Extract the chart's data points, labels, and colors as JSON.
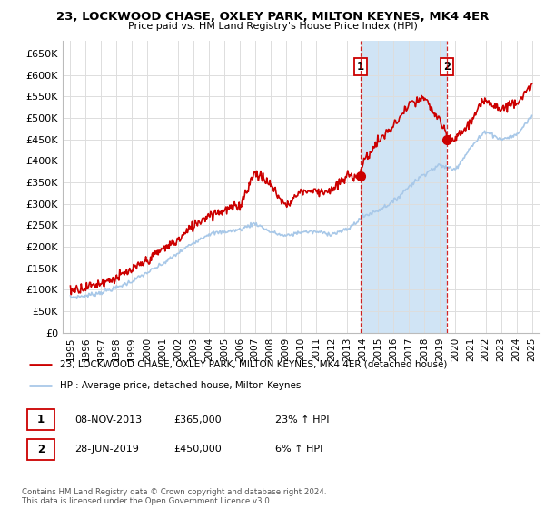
{
  "title": "23, LOCKWOOD CHASE, OXLEY PARK, MILTON KEYNES, MK4 4ER",
  "subtitle": "Price paid vs. HM Land Registry's House Price Index (HPI)",
  "legend_line1": "23, LOCKWOOD CHASE, OXLEY PARK, MILTON KEYNES, MK4 4ER (detached house)",
  "legend_line2": "HPI: Average price, detached house, Milton Keynes",
  "annotation1_label": "1",
  "annotation1_date": "08-NOV-2013",
  "annotation1_price": "£365,000",
  "annotation1_hpi": "23% ↑ HPI",
  "annotation1_year": 2013.85,
  "annotation1_value": 365000,
  "annotation2_label": "2",
  "annotation2_date": "28-JUN-2019",
  "annotation2_price": "£450,000",
  "annotation2_hpi": "6% ↑ HPI",
  "annotation2_year": 2019.5,
  "annotation2_value": 450000,
  "hpi_color": "#a8c8e8",
  "price_color": "#cc0000",
  "vline_color": "#cc0000",
  "dot_color": "#cc0000",
  "shaded_color": "#d0e4f5",
  "background_color": "#ffffff",
  "grid_color": "#dddddd",
  "ylim": [
    0,
    680000
  ],
  "yticks": [
    0,
    50000,
    100000,
    150000,
    200000,
    250000,
    300000,
    350000,
    400000,
    450000,
    500000,
    550000,
    600000,
    650000
  ],
  "xlim_start": 1994.5,
  "xlim_end": 2025.5,
  "footer": "Contains HM Land Registry data © Crown copyright and database right 2024.\nThis data is licensed under the Open Government Licence v3.0.",
  "hpi_years": [
    1995,
    1996,
    1997,
    1998,
    1999,
    2000,
    2001,
    2002,
    2003,
    2004,
    2005,
    2006,
    2007,
    2008,
    2009,
    2010,
    2011,
    2012,
    2013,
    2014,
    2015,
    2016,
    2017,
    2018,
    2019,
    2020,
    2021,
    2022,
    2023,
    2024,
    2025
  ],
  "hpi_vals": [
    82000,
    86000,
    94000,
    105000,
    120000,
    140000,
    160000,
    185000,
    210000,
    230000,
    235000,
    240000,
    255000,
    235000,
    225000,
    235000,
    235000,
    230000,
    240000,
    270000,
    285000,
    305000,
    340000,
    370000,
    390000,
    380000,
    430000,
    470000,
    450000,
    460000,
    505000
  ],
  "red_years": [
    1995,
    1996,
    1997,
    1998,
    1999,
    2000,
    2001,
    2002,
    2003,
    2004,
    2005,
    2006,
    2007,
    2008,
    2009,
    2010,
    2011,
    2012,
    2013,
    2013.85,
    2014,
    2015,
    2016,
    2017,
    2018,
    2019,
    2019.5,
    2020,
    2021,
    2022,
    2023,
    2024,
    2025
  ],
  "red_vals": [
    100000,
    106000,
    116000,
    128000,
    145000,
    168000,
    195000,
    215000,
    250000,
    275000,
    285000,
    295000,
    375000,
    345000,
    295000,
    330000,
    330000,
    330000,
    365000,
    365000,
    395000,
    445000,
    480000,
    530000,
    545000,
    495000,
    450000,
    450000,
    490000,
    545000,
    520000,
    540000,
    570000
  ]
}
